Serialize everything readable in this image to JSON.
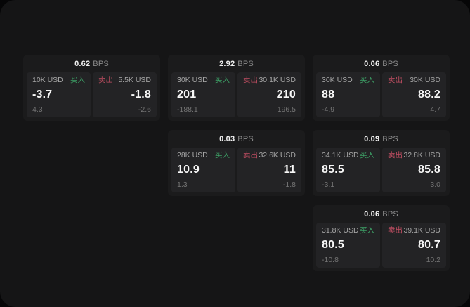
{
  "labels": {
    "bps_unit": "BPS",
    "buy": "买入",
    "sell": "卖出"
  },
  "colors": {
    "buy_green": "#3da066",
    "sell_red": "#c04e62",
    "card_bg": "#1b1b1c",
    "panel_bg": "#232325",
    "page_bg": "#151516"
  },
  "cards": [
    {
      "bps": "0.62",
      "buy": {
        "size": "10K USD",
        "price": "-3.7",
        "delta": "4.3"
      },
      "sell": {
        "size": "5.5K USD",
        "price": "-1.8",
        "delta": "-2.6"
      }
    },
    {
      "bps": "2.92",
      "buy": {
        "size": "30K USD",
        "price": "201",
        "delta": "-188.1"
      },
      "sell": {
        "size": "30.1K USD",
        "price": "210",
        "delta": "196.5"
      }
    },
    {
      "bps": "0.06",
      "buy": {
        "size": "30K USD",
        "price": "88",
        "delta": "-4.9"
      },
      "sell": {
        "size": "30K USD",
        "price": "88.2",
        "delta": "4.7"
      }
    },
    {
      "bps": "0.03",
      "buy": {
        "size": "28K USD",
        "price": "10.9",
        "delta": "1.3"
      },
      "sell": {
        "size": "32.6K USD",
        "price": "11",
        "delta": "-1.8"
      }
    },
    {
      "bps": "0.09",
      "buy": {
        "size": "34.1K USD",
        "price": "85.5",
        "delta": "-3.1"
      },
      "sell": {
        "size": "32.8K USD",
        "price": "85.8",
        "delta": "3.0"
      }
    },
    {
      "bps": "0.06",
      "buy": {
        "size": "31.8K USD",
        "price": "80.5",
        "delta": "-10.8"
      },
      "sell": {
        "size": "39.1K USD",
        "price": "80.7",
        "delta": "10.2"
      }
    }
  ]
}
